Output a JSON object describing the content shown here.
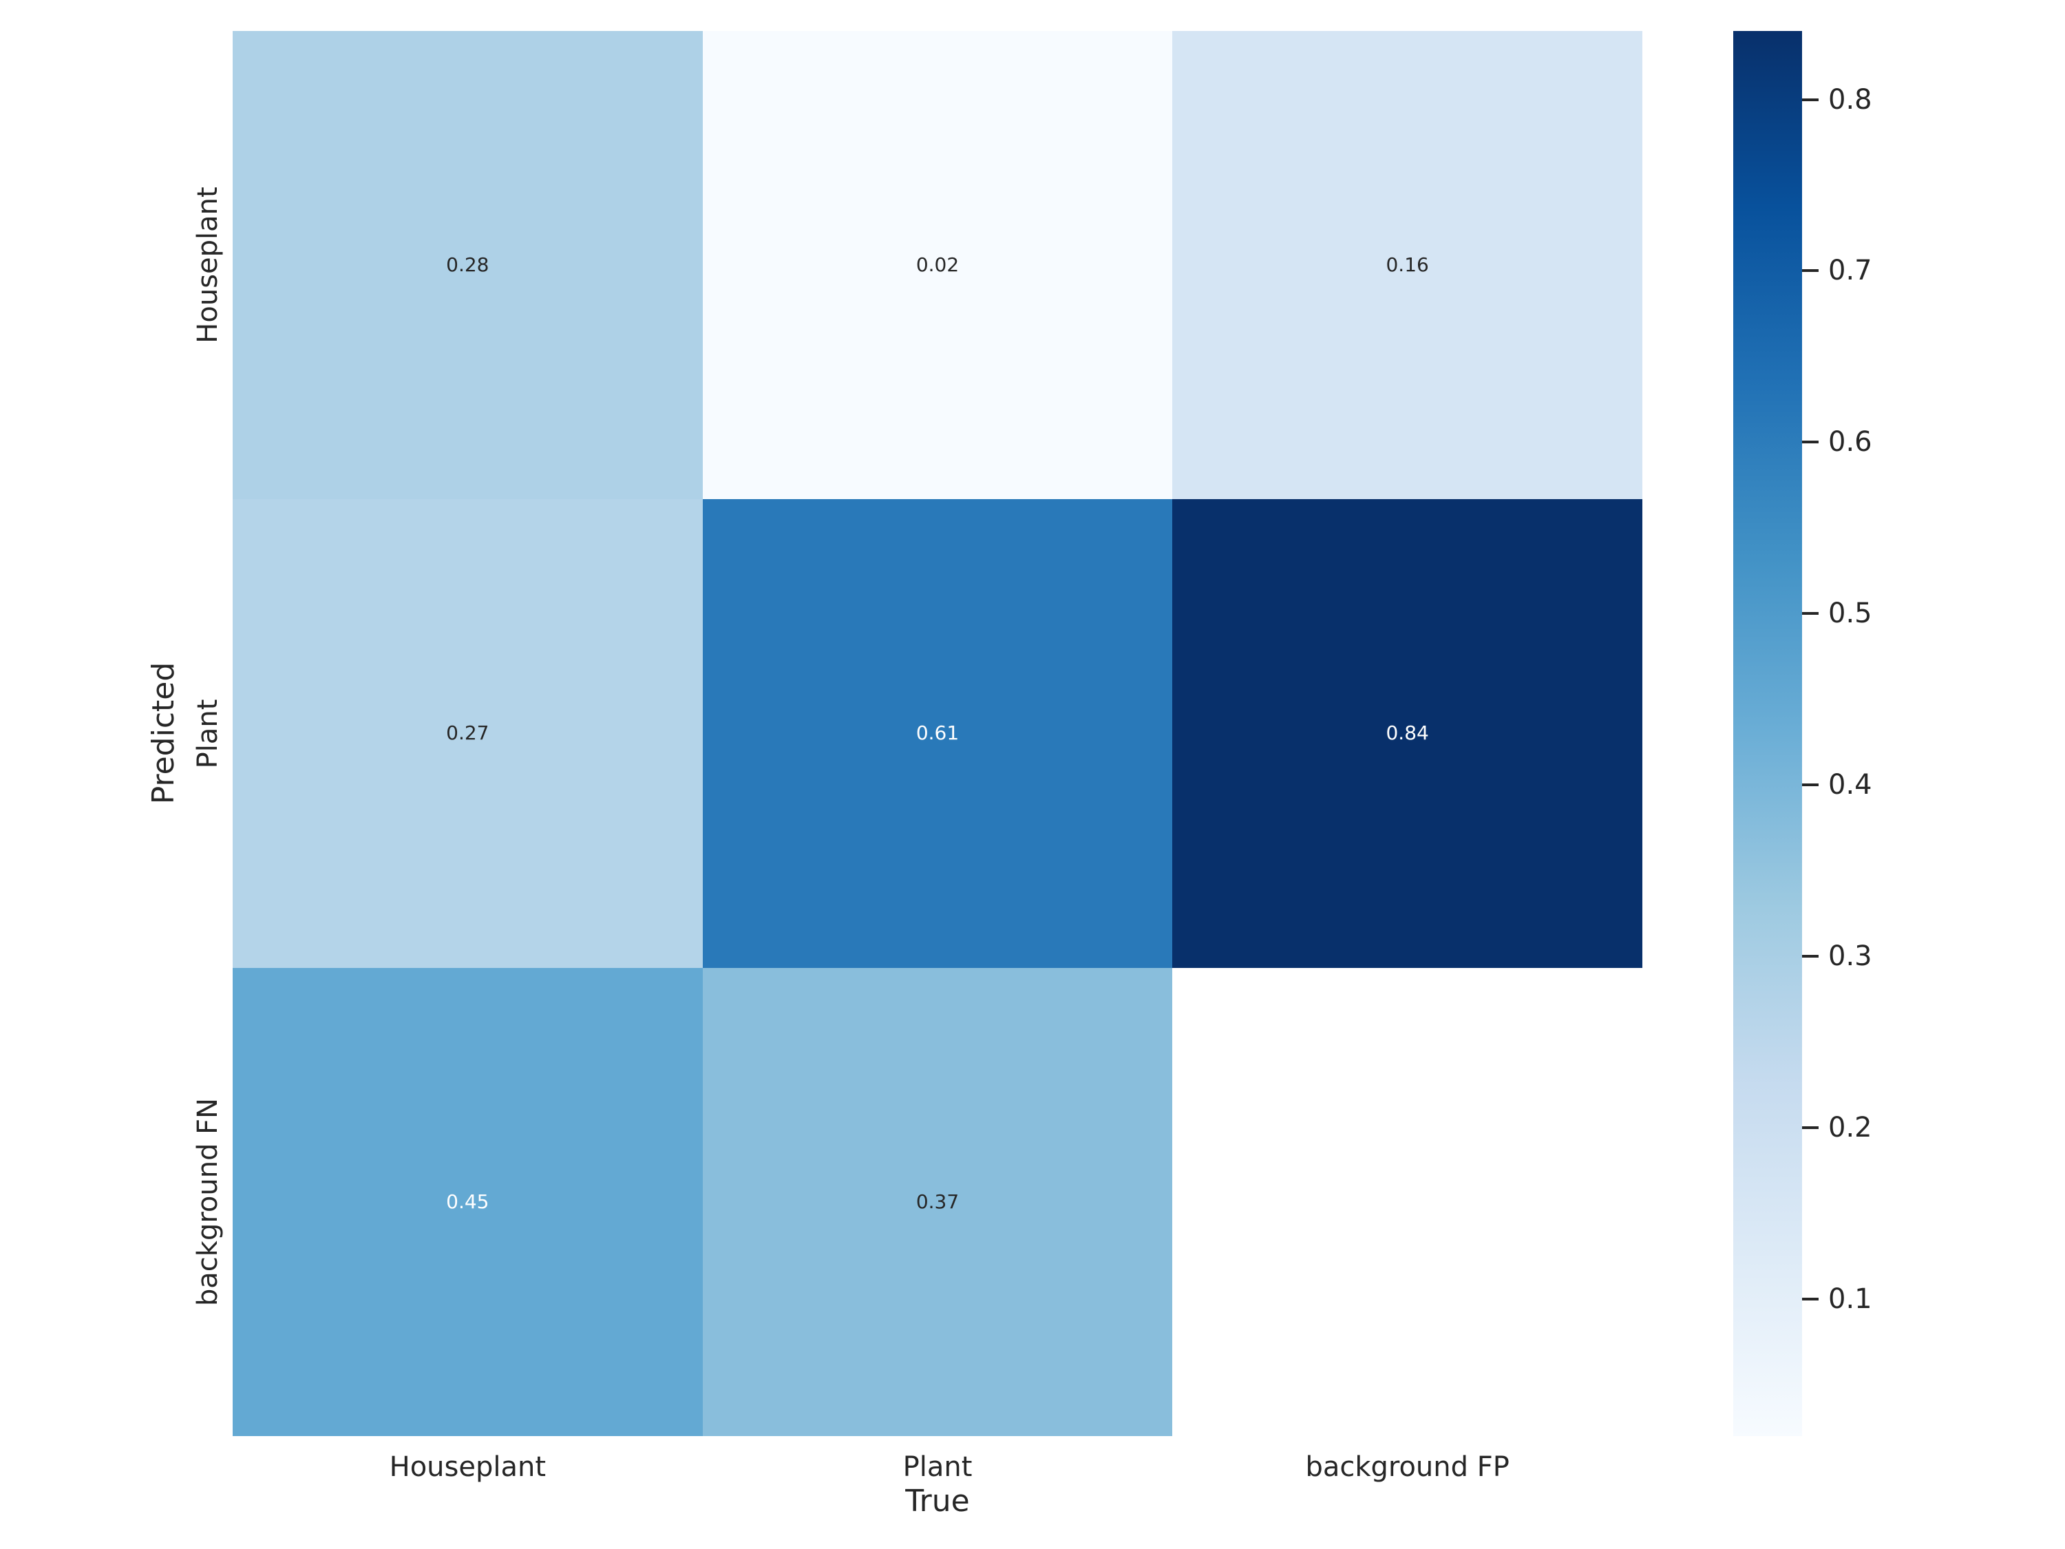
{
  "background": "#ffffff",
  "text_color": "#262626",
  "chart_data": {
    "type": "heatmap",
    "title": "",
    "xlabel": "True",
    "ylabel": "Predicted",
    "x_categories": [
      "Houseplant",
      "Plant",
      "background FP"
    ],
    "y_categories": [
      "Houseplant",
      "Plant",
      "background FN"
    ],
    "values": [
      [
        0.28,
        0.02,
        0.16
      ],
      [
        0.27,
        0.61,
        0.84
      ],
      [
        0.45,
        0.37,
        null
      ]
    ],
    "value_labels": [
      [
        "0.28",
        "0.02",
        "0.16"
      ],
      [
        "0.27",
        "0.61",
        "0.84"
      ],
      [
        "0.45",
        "0.37",
        ""
      ]
    ],
    "cell_colors": [
      [
        "#aed1e7",
        "#f7fbff",
        "#d5e5f4"
      ],
      [
        "#b4d4e9",
        "#2979b9",
        "#08306b"
      ],
      [
        "#63a9d3",
        "#89bedc",
        "#ffffff"
      ]
    ],
    "cell_text_colors": [
      [
        "#262626",
        "#262626",
        "#262626"
      ],
      [
        "#262626",
        "#ffffff",
        "#ffffff"
      ],
      [
        "#ffffff",
        "#262626",
        "#262626"
      ]
    ],
    "colormap": "Blues",
    "colormap_stops": [
      "#f7fbff",
      "#deebf7",
      "#c6dbef",
      "#9ecae1",
      "#6baed6",
      "#4292c6",
      "#2171b5",
      "#08519c",
      "#08306b"
    ],
    "vmin": 0.02,
    "vmax": 0.84,
    "grid": false,
    "legend_position": "colorbar-right",
    "colorbar": {
      "ticks": [
        0.8,
        0.7,
        0.6,
        0.5,
        0.4,
        0.3,
        0.2,
        0.1
      ],
      "tick_labels": [
        "0.8",
        "0.7",
        "0.6",
        "0.5",
        "0.4",
        "0.3",
        "0.2",
        "0.1"
      ]
    }
  }
}
